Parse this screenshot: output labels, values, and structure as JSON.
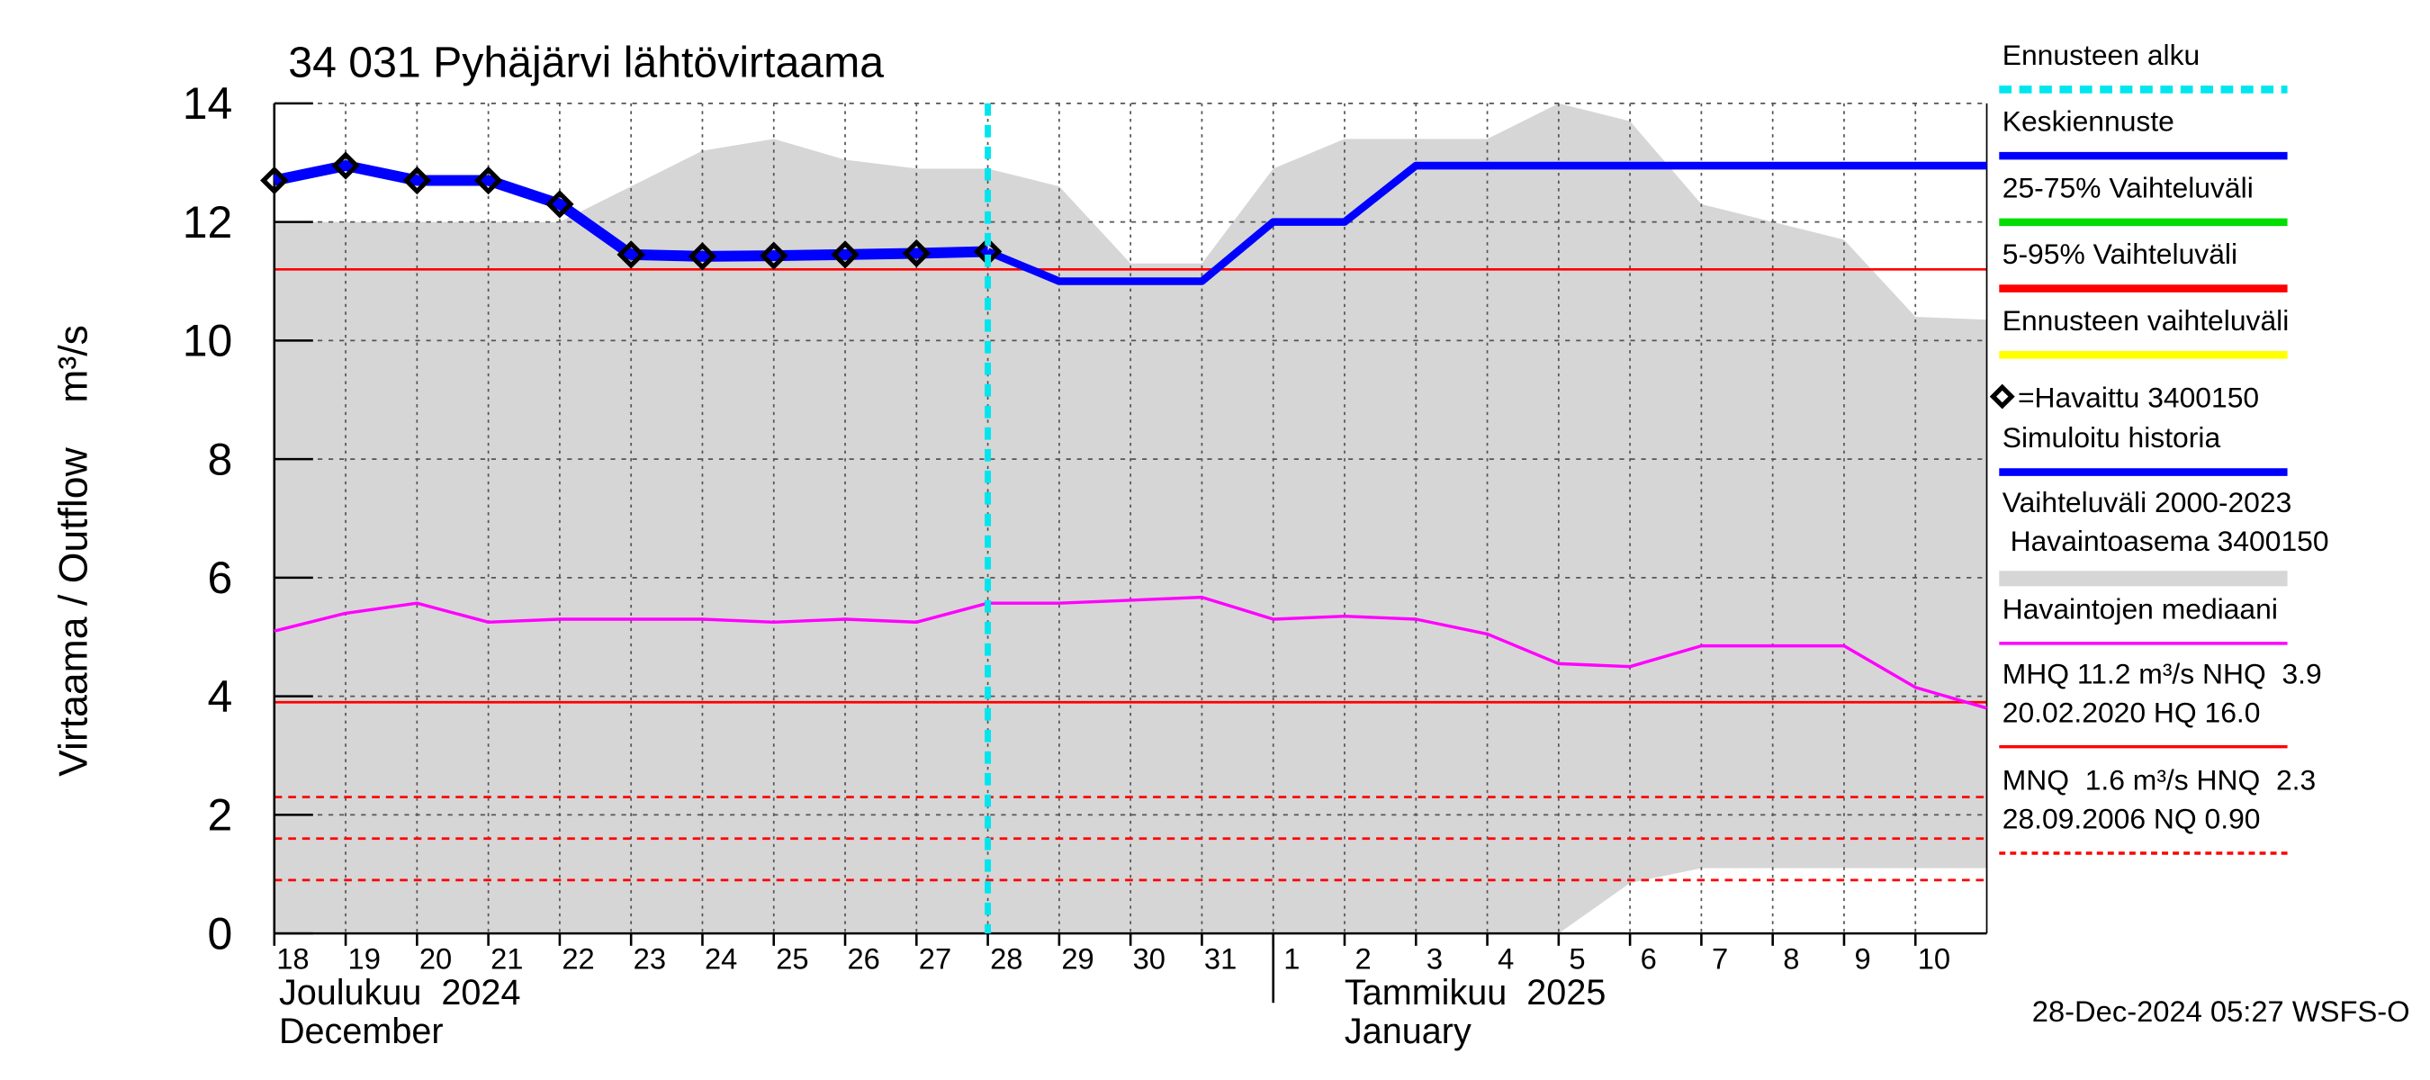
{
  "chart_data": {
    "type": "line",
    "title": "34 031 Pyhäjärvi lähtövirtaama",
    "y_label": "Virtaama / Outflow    m³/s",
    "footer": "28-Dec-2024 05:27 WSFS-O",
    "x": [
      "2024-12-18",
      "2024-12-19",
      "2024-12-20",
      "2024-12-21",
      "2024-12-22",
      "2024-12-23",
      "2024-12-24",
      "2024-12-25",
      "2024-12-26",
      "2024-12-27",
      "2024-12-28",
      "2024-12-29",
      "2024-12-30",
      "2024-12-31",
      "2025-01-01",
      "2025-01-02",
      "2025-01-03",
      "2025-01-04",
      "2025-01-05",
      "2025-01-06",
      "2025-01-07",
      "2025-01-08",
      "2025-01-09",
      "2025-01-10",
      "2025-01-11"
    ],
    "xlim": [
      "2024-12-18",
      "2025-01-11"
    ],
    "xticks": [
      {
        "value": "2024-12-18",
        "label": "18"
      },
      {
        "value": "2024-12-19",
        "label": "19"
      },
      {
        "value": "2024-12-20",
        "label": "20"
      },
      {
        "value": "2024-12-21",
        "label": "21"
      },
      {
        "value": "2024-12-22",
        "label": "22"
      },
      {
        "value": "2024-12-23",
        "label": "23"
      },
      {
        "value": "2024-12-24",
        "label": "24"
      },
      {
        "value": "2024-12-25",
        "label": "25"
      },
      {
        "value": "2024-12-26",
        "label": "26"
      },
      {
        "value": "2024-12-27",
        "label": "27"
      },
      {
        "value": "2024-12-28",
        "label": "28"
      },
      {
        "value": "2024-12-29",
        "label": "29"
      },
      {
        "value": "2024-12-30",
        "label": "30"
      },
      {
        "value": "2024-12-31",
        "label": "31"
      },
      {
        "value": "2025-01-01",
        "label": "1"
      },
      {
        "value": "2025-01-02",
        "label": "2"
      },
      {
        "value": "2025-01-03",
        "label": "3"
      },
      {
        "value": "2025-01-04",
        "label": "4"
      },
      {
        "value": "2025-01-05",
        "label": "5"
      },
      {
        "value": "2025-01-06",
        "label": "6"
      },
      {
        "value": "2025-01-07",
        "label": "7"
      },
      {
        "value": "2025-01-08",
        "label": "8"
      },
      {
        "value": "2025-01-09",
        "label": "9"
      },
      {
        "value": "2025-01-10",
        "label": "10"
      }
    ],
    "month_break": "2025-01-01",
    "month_labels": [
      [
        "Joulukuu  2024",
        "December"
      ],
      [
        "Tammikuu  2025",
        "January"
      ]
    ],
    "ylim": [
      0,
      14
    ],
    "yticks": [
      0,
      2,
      4,
      6,
      8,
      10,
      12,
      14
    ],
    "grid": true,
    "forecast_start": "2024-12-28",
    "band": {
      "color": "#d6d6d6",
      "upper": [
        12.0,
        12.0,
        12.0,
        12.0,
        12.0,
        12.6,
        13.2,
        13.4,
        13.05,
        12.9,
        12.9,
        12.6,
        11.3,
        11.3,
        12.9,
        13.4,
        13.4,
        13.4,
        14.0,
        13.7,
        12.3,
        12.0,
        11.7,
        10.4,
        10.35
      ],
      "lower": [
        0,
        0,
        0,
        0,
        0,
        0,
        0,
        0,
        0,
        0,
        0,
        0,
        0,
        0,
        0,
        0,
        0,
        0,
        0,
        0.85,
        1.1,
        1.1,
        1.1,
        1.1,
        1.1
      ]
    },
    "reference_lines": [
      {
        "value": 11.2,
        "color": "#ff0000",
        "dashed": false
      },
      {
        "value": 3.9,
        "color": "#ff0000",
        "dashed": false
      },
      {
        "value": 2.3,
        "color": "#ff0000",
        "dashed": true
      },
      {
        "value": 1.6,
        "color": "#ff0000",
        "dashed": true
      },
      {
        "value": 0.9,
        "color": "#ff0000",
        "dashed": true
      }
    ],
    "series": [
      {
        "style": "line",
        "color": "#ff00ff",
        "width": 2,
        "values": [
          5.1,
          5.4,
          5.57,
          5.25,
          5.3,
          5.3,
          5.3,
          5.25,
          5.3,
          5.25,
          5.57,
          5.57,
          5.62,
          5.67,
          5.3,
          5.35,
          5.3,
          5.05,
          4.55,
          4.5,
          4.85,
          4.85,
          4.85,
          4.15,
          3.8
        ]
      },
      {
        "style": "line",
        "color": "#0000ff",
        "width": 7,
        "values": [
          12.7,
          12.95,
          12.7,
          12.7,
          12.3,
          11.45,
          11.42,
          11.43,
          11.45,
          11.47,
          11.5,
          null,
          null,
          null,
          null,
          null,
          null,
          null,
          null,
          null,
          null,
          null,
          null,
          null,
          null
        ]
      },
      {
        "style": "line",
        "color": "#0000ff",
        "width": 5,
        "values": [
          null,
          null,
          null,
          null,
          null,
          null,
          null,
          null,
          null,
          null,
          11.5,
          11.0,
          11.0,
          11.0,
          12.0,
          12.0,
          12.95,
          12.95,
          12.95,
          12.95,
          12.95,
          12.95,
          12.95,
          12.95,
          12.95
        ]
      },
      {
        "style": "diamond",
        "color": "#000000",
        "values": [
          12.7,
          12.95,
          12.7,
          12.7,
          12.3,
          11.45,
          11.42,
          11.43,
          11.45,
          11.47,
          11.5,
          null,
          null,
          null,
          null,
          null,
          null,
          null,
          null,
          null,
          null,
          null,
          null,
          null,
          null
        ]
      }
    ],
    "legend": [
      {
        "labels": [
          "Ennusteen alku"
        ],
        "color": "#00e5ee",
        "style": "dashed"
      },
      {
        "labels": [
          "Keskiennuste"
        ],
        "color": "#0000ff",
        "style": "line"
      },
      {
        "labels": [
          "25-75% Vaihteluväli"
        ],
        "color": "#00dd00",
        "style": "line"
      },
      {
        "labels": [
          "5-95% Vaihteluväli"
        ],
        "color": "#ff0000",
        "style": "line"
      },
      {
        "labels": [
          "Ennusteen vaihteluväli"
        ],
        "color": "#ffff00",
        "style": "line"
      },
      {
        "labels": [
          "=Havaittu 3400150"
        ],
        "color": "#000000",
        "style": "diamond"
      },
      {
        "labels": [
          "Simuloitu historia"
        ],
        "color": "#0000ff",
        "style": "line"
      },
      {
        "labels": [
          "Vaihteluväli 2000-2023",
          " Havaintoasema 3400150"
        ],
        "color": "#d6d6d6",
        "style": "band"
      },
      {
        "labels": [
          "Havaintojen mediaani"
        ],
        "color": "#ff00ff",
        "style": "thin"
      },
      {
        "labels": [
          "MHQ 11.2 m³/s NHQ  3.9",
          "20.02.2020 HQ 16.0"
        ],
        "color": "#ff0000",
        "style": "thin"
      },
      {
        "labels": [
          "MNQ  1.6 m³/s HNQ  2.3",
          "28.09.2006 NQ 0.90"
        ],
        "color": "#ff0000",
        "style": "thin-dashed"
      }
    ]
  }
}
